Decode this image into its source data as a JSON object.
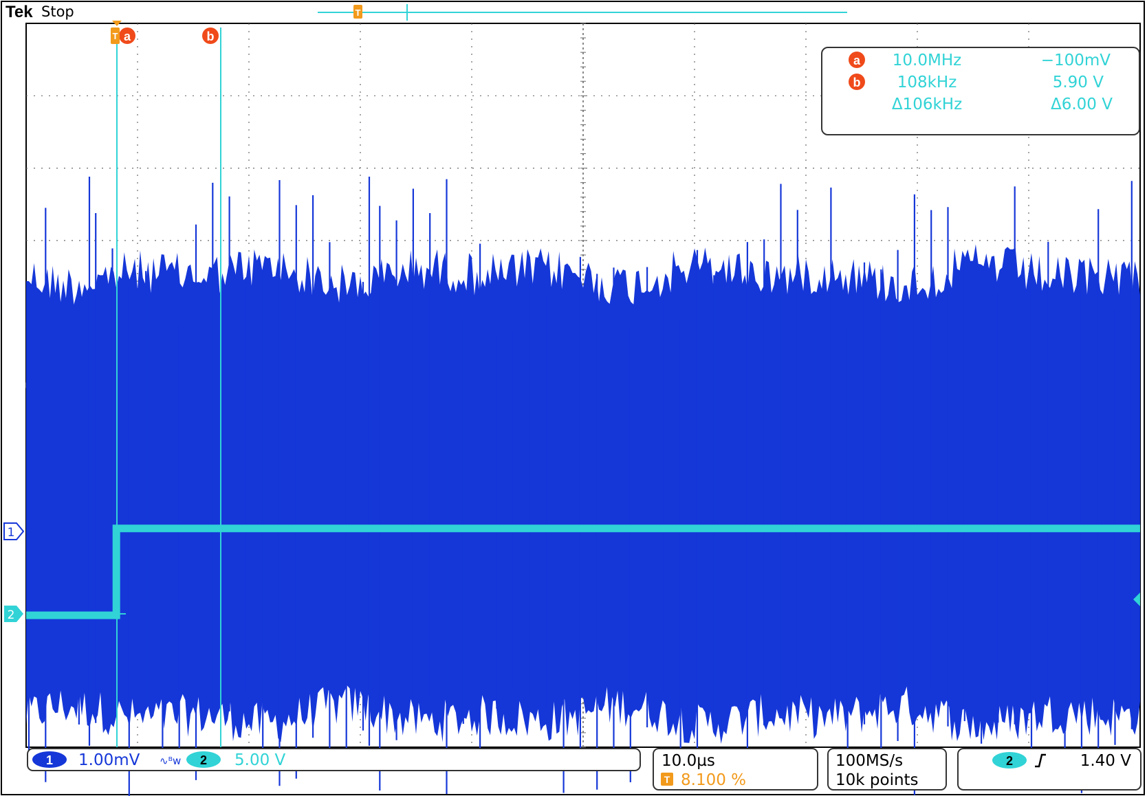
{
  "header": {
    "brand": "Tek",
    "status": "Stop"
  },
  "colors": {
    "ch1": "#1537d8",
    "ch2": "#31d3d6",
    "cursor_badge": "#f04a1a",
    "trigger": "#f29a1c",
    "grid": "#6a6a6a",
    "frame": "#000000",
    "text": "#000000"
  },
  "cursors": {
    "a_label": "a",
    "b_label": "b",
    "a_freq": "10.0MHz",
    "a_volt": "−100mV",
    "b_freq": "108kHz",
    "b_volt": "5.90 V",
    "delta_freq": "Δ106kHz",
    "delta_volt": "Δ6.00 V"
  },
  "markers": {
    "ch1": "1",
    "ch2": "2",
    "trigger": "T"
  },
  "status_bar": {
    "ch1_num": "1",
    "ch1_scale": "1.00mV",
    "ch1_coupling_icon": "ac-bw-limit-icon",
    "ch2_num": "2",
    "ch2_scale": "5.00 V",
    "timebase": "10.0µs",
    "trigger_badge": "T",
    "trigger_position": "8.100 %",
    "sample_rate": "100MS/s",
    "record_length": "10k points",
    "trigger_source": "2",
    "trigger_slope_icon": "rising-edge-icon",
    "trigger_level": "1.40 V"
  },
  "chart_data": {
    "type": "line",
    "title": "",
    "xlabel": "",
    "ylabel": "",
    "grid": true,
    "x_divisions": 10,
    "y_divisions": 10,
    "seconds_per_division": 1e-05,
    "trigger_position_percent": 8.1,
    "series": [
      {
        "name": "",
        "channel": 1,
        "volts_per_division": 0.001,
        "description_values": {
          "dense_envelope_div": [
            -3.0,
            4.0
          ],
          "spike_peak_div": [
            -3.7,
            4.9
          ],
          "spike_interval_us": 1.5
        }
      },
      {
        "name": "",
        "channel": 2,
        "volts_per_division": 5.0,
        "steps": [
          {
            "t_div": 0.0,
            "v": -0.1
          },
          {
            "t_div": 0.81,
            "v": -0.1
          },
          {
            "t_div": 0.81,
            "v": 5.9
          },
          {
            "t_div": 10.0,
            "v": 5.9
          }
        ]
      }
    ]
  }
}
